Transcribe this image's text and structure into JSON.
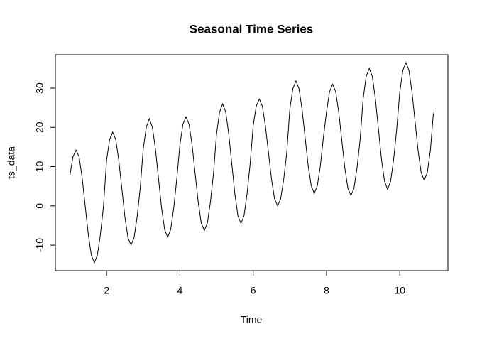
{
  "chart_data": {
    "type": "line",
    "title": "Seasonal Time Series",
    "x_label": "Time",
    "y_label": "ts_data",
    "x": [
      1,
      1.0833,
      1.1667,
      1.25,
      1.3333,
      1.4167,
      1.5,
      1.5833,
      1.6667,
      1.75,
      1.8333,
      1.9167,
      2,
      2.0833,
      2.1667,
      2.25,
      2.3333,
      2.4167,
      2.5,
      2.5833,
      2.6667,
      2.75,
      2.8333,
      2.9167,
      3,
      3.0833,
      3.1667,
      3.25,
      3.3333,
      3.4167,
      3.5,
      3.5833,
      3.6667,
      3.75,
      3.8333,
      3.9167,
      4,
      4.0833,
      4.1667,
      4.25,
      4.3333,
      4.4167,
      4.5,
      4.5833,
      4.6667,
      4.75,
      4.8333,
      4.9167,
      5,
      5.0833,
      5.1667,
      5.25,
      5.3333,
      5.4167,
      5.5,
      5.5833,
      5.6667,
      5.75,
      5.8333,
      5.9167,
      6,
      6.0833,
      6.1667,
      6.25,
      6.3333,
      6.4167,
      6.5,
      6.5833,
      6.6667,
      6.75,
      6.8333,
      6.9167,
      7,
      7.0833,
      7.1667,
      7.25,
      7.3333,
      7.4167,
      7.5,
      7.5833,
      7.6667,
      7.75,
      7.8333,
      7.9167,
      8,
      8.0833,
      8.1667,
      8.25,
      8.3333,
      8.4167,
      8.5,
      8.5833,
      8.6667,
      8.75,
      8.8333,
      8.9167,
      9,
      9.0833,
      9.1667,
      9.25,
      9.3333,
      9.4167,
      9.5,
      9.5833,
      9.6667,
      9.75,
      9.8333,
      9.9167,
      10,
      10.0833,
      10.1667,
      10.25,
      10.3333,
      10.4167,
      10.5,
      10.5833,
      10.6667,
      10.75,
      10.8333,
      10.9167
    ],
    "values": [
      7.8,
      12.5,
      14.2,
      12.5,
      7.2,
      0,
      -7.2,
      -12.5,
      -14.5,
      -12.5,
      -7.2,
      0,
      11.6,
      16.9,
      18.8,
      16.9,
      11.6,
      4.4,
      -2.8,
      -8.1,
      -10,
      -8.1,
      -2.8,
      4.4,
      14.5,
      20,
      22.2,
      20,
      14.5,
      7,
      -0.5,
      -6,
      -8,
      -6,
      -0.5,
      7,
      15.5,
      20.8,
      22.7,
      20.8,
      15.5,
      8.2,
      1,
      -4.4,
      -6.3,
      -4.4,
      1,
      8.2,
      18.3,
      23.9,
      26,
      23.9,
      18.3,
      10.7,
      3.1,
      -2.5,
      -4.5,
      -2.5,
      3.1,
      10.7,
      20.4,
      25.4,
      27.2,
      25.4,
      20.4,
      13.6,
      6.8,
      1.8,
      0,
      1.8,
      6.8,
      13.6,
      24.6,
      29.9,
      31.8,
      29.9,
      24.6,
      17.5,
      10.3,
      5.1,
      3.2,
      5.1,
      10.3,
      17.5,
      23.9,
      29.1,
      31,
      29.1,
      23.9,
      16.8,
      9.7,
      4.5,
      2.6,
      4.5,
      9.7,
      16.8,
      27.3,
      33,
      35,
      33,
      27.3,
      19.6,
      11.9,
      6.3,
      4.2,
      6.3,
      11.9,
      19.6,
      29,
      34.5,
      36.5,
      34.5,
      29,
      21.5,
      14,
      8.5,
      6.5,
      8.5,
      14,
      23.6
    ],
    "color": "#000000",
    "xlim": [
      0.603,
      11.313
    ],
    "xticks": [
      2,
      4,
      6,
      8,
      10
    ],
    "ylim": [
      -16.5,
      38.5
    ],
    "yticks": [
      -10,
      0,
      10,
      20,
      30
    ]
  }
}
